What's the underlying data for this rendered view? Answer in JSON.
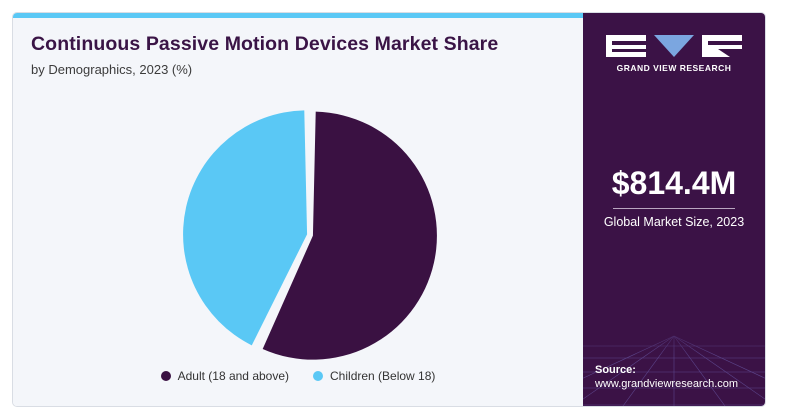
{
  "title": "Continuous Passive Motion Devices Market Share",
  "subtitle": "by Demographics, 2023 (%)",
  "chart_data": {
    "type": "pie",
    "title": "Continuous Passive Motion Devices Market Share",
    "subtitle": "by Demographics, 2023 (%)",
    "categories": [
      "Adult (18 and above)",
      "Children (Below 18)"
    ],
    "values": [
      57,
      43
    ],
    "colors": [
      "#3a1142",
      "#5ac8f5"
    ],
    "legend_position": "bottom"
  },
  "brand": {
    "name": "GRAND VIEW RESEARCH",
    "accent": "#3b1246"
  },
  "market": {
    "size": "$814.4M",
    "label": "Global Market Size, 2023"
  },
  "source": {
    "label": "Source:",
    "url": "www.grandviewresearch.com"
  }
}
